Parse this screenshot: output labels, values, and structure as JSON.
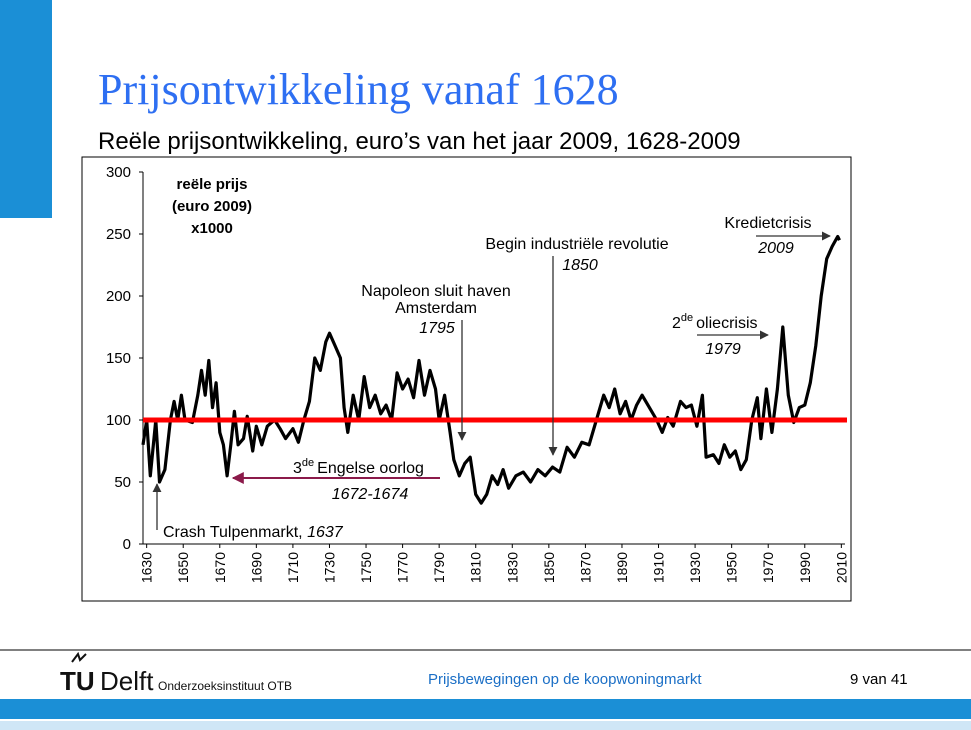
{
  "slide": {
    "title": "Prijsontwikkeling vanaf 1628",
    "logo_tu": "TU",
    "logo_delft": "Delft",
    "institute": "Onderzoeksinstituut OTB",
    "footer_title": "Prijsbewegingen op de koopwoningmarkt",
    "page": "9 van 41"
  },
  "chart_data": {
    "type": "line",
    "title": "Reële prijsontwikkeling, euro’s van het jaar 2009, 1628-2009",
    "y_label": [
      "reële prijs",
      "(euro 2009)",
      "x1000"
    ],
    "color": "#000000",
    "x": [
      1628,
      1630,
      1632,
      1635,
      1637,
      1640,
      1643,
      1645,
      1647,
      1649,
      1651,
      1655,
      1658,
      1660,
      1662,
      1664,
      1666,
      1668,
      1670,
      1672,
      1674,
      1676,
      1678,
      1680,
      1683,
      1685,
      1688,
      1690,
      1693,
      1696,
      1700,
      1703,
      1706,
      1710,
      1713,
      1716,
      1719,
      1722,
      1725,
      1728,
      1730,
      1733,
      1736,
      1738,
      1740,
      1743,
      1746,
      1749,
      1752,
      1755,
      1758,
      1761,
      1764,
      1767,
      1770,
      1773,
      1776,
      1779,
      1782,
      1785,
      1788,
      1790,
      1793,
      1796,
      1798,
      1801,
      1804,
      1807,
      1810,
      1813,
      1816,
      1819,
      1822,
      1825,
      1828,
      1832,
      1836,
      1840,
      1844,
      1848,
      1852,
      1856,
      1860,
      1864,
      1868,
      1872,
      1876,
      1880,
      1883,
      1886,
      1889,
      1892,
      1895,
      1898,
      1901,
      1905,
      1909,
      1912,
      1915,
      1918,
      1922,
      1925,
      1928,
      1931,
      1934,
      1936,
      1940,
      1943,
      1946,
      1949,
      1952,
      1955,
      1958,
      1961,
      1964,
      1966,
      1969,
      1972,
      1975,
      1978,
      1981,
      1984,
      1987,
      1990,
      1993,
      1996,
      1999,
      2002,
      2005,
      2008,
      2009
    ],
    "values": [
      80,
      100,
      55,
      100,
      50,
      60,
      100,
      115,
      100,
      120,
      100,
      98,
      120,
      140,
      120,
      148,
      110,
      130,
      90,
      80,
      55,
      80,
      107,
      80,
      85,
      103,
      75,
      95,
      80,
      95,
      100,
      93,
      85,
      93,
      82,
      100,
      115,
      150,
      140,
      163,
      170,
      160,
      150,
      110,
      90,
      120,
      100,
      135,
      110,
      120,
      105,
      112,
      100,
      138,
      125,
      133,
      118,
      148,
      120,
      140,
      125,
      100,
      120,
      90,
      68,
      55,
      65,
      70,
      40,
      33,
      40,
      55,
      48,
      60,
      45,
      55,
      58,
      50,
      60,
      55,
      62,
      58,
      78,
      70,
      82,
      80,
      100,
      120,
      110,
      125,
      105,
      115,
      100,
      112,
      120,
      110,
      100,
      90,
      102,
      95,
      115,
      110,
      112,
      95,
      120,
      70,
      72,
      65,
      80,
      70,
      75,
      60,
      68,
      100,
      118,
      85,
      125,
      90,
      125,
      175,
      120,
      98,
      110,
      112,
      130,
      160,
      200,
      230,
      240,
      248,
      245
    ],
    "xlim": [
      1628,
      2012
    ],
    "xticks": [
      1630,
      1650,
      1670,
      1690,
      1710,
      1730,
      1750,
      1770,
      1790,
      1810,
      1830,
      1850,
      1870,
      1890,
      1910,
      1930,
      1950,
      1970,
      1990,
      2010
    ],
    "ylim": [
      0,
      300
    ],
    "yticks": [
      0,
      50,
      100,
      150,
      200,
      250,
      300
    ],
    "reference_line": {
      "value": 100,
      "color": "#ff0000"
    },
    "annotations": [
      {
        "text": "Crash Tulpenmarkt, ",
        "year": "1637"
      },
      {
        "ordinal": "3",
        "suffix": "de",
        "text": "Engelse oorlog",
        "year": "1672-1674"
      },
      {
        "lines": [
          "Napoleon sluit haven",
          "Amsterdam"
        ],
        "year": "1795"
      },
      {
        "text": "Begin industriële revolutie",
        "year": "1850"
      },
      {
        "ordinal": "2",
        "suffix": "de",
        "text": "oliecrisis",
        "year": "1979"
      },
      {
        "text": "Kredietcrisis",
        "year": "2009"
      }
    ]
  }
}
